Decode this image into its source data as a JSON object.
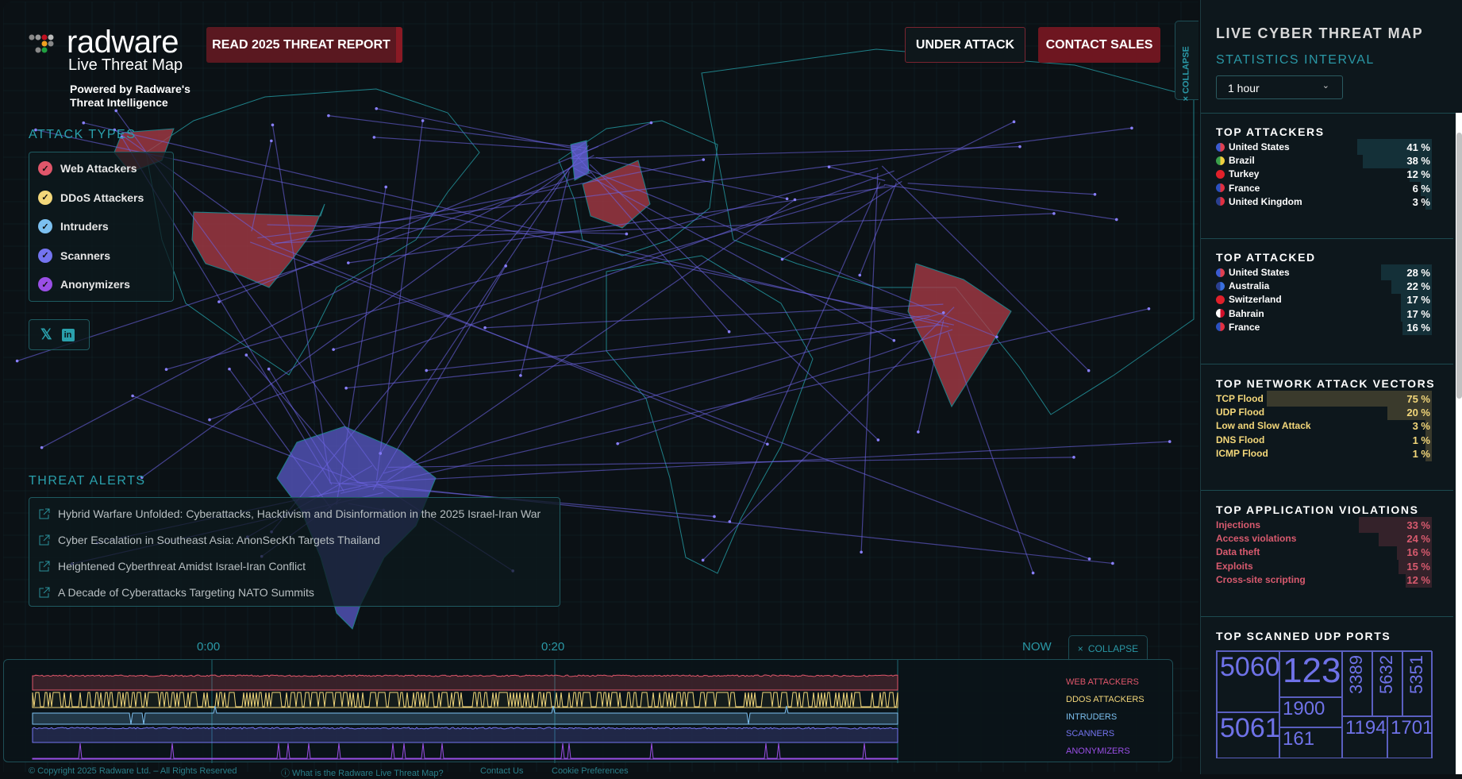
{
  "header": {
    "logo_text": "radware",
    "logo_subtitle": "Live Threat Map",
    "powered_line1": "Powered by Radware's",
    "powered_line2": "Threat Intelligence",
    "report_button": "READ 2025 THREAT REPORT",
    "under_attack_button": "UNDER ATTACK",
    "contact_sales_button": "CONTACT SALES",
    "collapse_panel": "COLLAPSE"
  },
  "attack_types": {
    "title": "ATTACK TYPES",
    "items": [
      {
        "label": "Web Attackers",
        "color": "#e0566a",
        "checked": true
      },
      {
        "label": "DDoS Attackers",
        "color": "#f3d77a",
        "checked": true
      },
      {
        "label": "Intruders",
        "color": "#7cc0f0",
        "checked": true
      },
      {
        "label": "Scanners",
        "color": "#7474f0",
        "checked": true
      },
      {
        "label": "Anonymizers",
        "color": "#9a4fe6",
        "checked": true
      }
    ]
  },
  "social": {
    "x_icon": "x-logo-icon",
    "linkedin_icon": "linkedin-icon"
  },
  "threat_alerts": {
    "title": "THREAT ALERTS",
    "items": [
      "Hybrid Warfare Unfolded: Cyberattacks, Hacktivism and Disinformation in the 2025 Israel-Iran War",
      "Cyber Escalation in Southeast Asia: AnonSecKh Targets Thailand",
      "Heightened Cyberthreat Amidst Israel-Iran Conflict",
      "A Decade of Cyberattacks Targeting NATO Summits"
    ]
  },
  "timeline": {
    "ticks": [
      "0:00",
      "0:20",
      "NOW"
    ],
    "collapse": "COLLAPSE",
    "series": [
      {
        "label": "WEB ATTACKERS",
        "color": "#e0566a"
      },
      {
        "label": "DDOS ATTACKERS",
        "color": "#f3d77a"
      },
      {
        "label": "INTRUDERS",
        "color": "#7cc0f0"
      },
      {
        "label": "SCANNERS",
        "color": "#7474f0"
      },
      {
        "label": "ANONYMIZERS",
        "color": "#9a4fe6"
      }
    ]
  },
  "footer": {
    "copyright": "©  Copyright 2025 Radware Ltd. – All Rights Reserved",
    "what_is": "ⓘ What is the Radware Live Threat Map?",
    "contact": "Contact Us",
    "cookie": "Cookie Preferences"
  },
  "panel": {
    "title": "LIVE CYBER THREAT MAP",
    "interval_label": "STATISTICS INTERVAL",
    "interval_value": "1 hour",
    "top_attackers": {
      "title": "TOP ATTACKERS",
      "items": [
        {
          "country": "United States",
          "percent": 41,
          "flag": [
            "#3b5bd0",
            "#e04050"
          ]
        },
        {
          "country": "Brazil",
          "percent": 38,
          "flag": [
            "#3aa04a",
            "#f0d040"
          ]
        },
        {
          "country": "Turkey",
          "percent": 12,
          "flag": [
            "#e0202a",
            "#e0202a"
          ]
        },
        {
          "country": "France",
          "percent": 6,
          "flag": [
            "#2a50c0",
            "#e03040"
          ]
        },
        {
          "country": "United Kingdom",
          "percent": 3,
          "flag": [
            "#2a3f90",
            "#e03040"
          ]
        }
      ]
    },
    "top_attacked": {
      "title": "TOP ATTACKED",
      "items": [
        {
          "country": "United States",
          "percent": 28,
          "flag": [
            "#3b5bd0",
            "#e04050"
          ]
        },
        {
          "country": "Australia",
          "percent": 22,
          "flag": [
            "#2a3f90",
            "#3a70e0"
          ]
        },
        {
          "country": "Switzerland",
          "percent": 17,
          "flag": [
            "#e0202a",
            "#e0202a"
          ]
        },
        {
          "country": "Bahrain",
          "percent": 17,
          "flag": [
            "#ffffff",
            "#d0102a"
          ]
        },
        {
          "country": "France",
          "percent": 16,
          "flag": [
            "#2a50c0",
            "#e03040"
          ]
        }
      ]
    },
    "network_vectors": {
      "title": "TOP NETWORK ATTACK VECTORS",
      "color": "#f3d77a",
      "bar_color": "#3a3a2c",
      "items": [
        {
          "label": "TCP Flood",
          "percent": 75
        },
        {
          "label": "UDP Flood",
          "percent": 20
        },
        {
          "label": "Low and Slow Attack",
          "percent": 3
        },
        {
          "label": "DNS Flood",
          "percent": 1
        },
        {
          "label": "ICMP Flood",
          "percent": 1
        }
      ]
    },
    "app_violations": {
      "title": "TOP APPLICATION VIOLATIONS",
      "color": "#d85a6e",
      "bar_color": "#34222a",
      "items": [
        {
          "label": "Injections",
          "percent": 33
        },
        {
          "label": "Access violations",
          "percent": 24
        },
        {
          "label": "Data theft",
          "percent": 16
        },
        {
          "label": "Exploits",
          "percent": 15
        },
        {
          "label": "Cross-site scripting",
          "percent": 12
        }
      ]
    },
    "udp_ports": {
      "title": "TOP SCANNED UDP PORTS",
      "ports": [
        "5060",
        "5061",
        "123",
        "1900",
        "161",
        "3389",
        "5632",
        "5351",
        "1194",
        "1701"
      ]
    }
  }
}
